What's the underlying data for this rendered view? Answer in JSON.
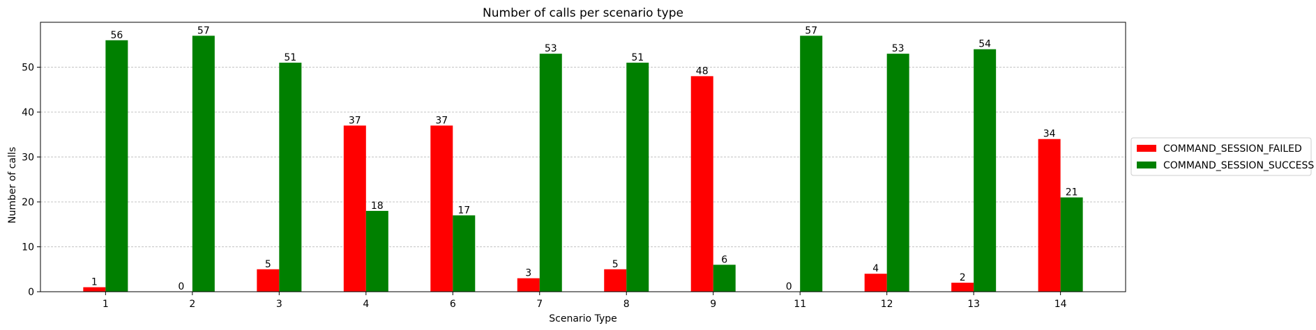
{
  "chart_data": {
    "type": "bar",
    "title": "Number of calls per scenario type",
    "xlabel": "Scenario Type",
    "ylabel": "Number of calls",
    "categories": [
      "1",
      "2",
      "3",
      "4",
      "6",
      "7",
      "8",
      "9",
      "11",
      "12",
      "13",
      "14"
    ],
    "series": [
      {
        "name": "COMMAND_SESSION_FAILED",
        "color": "#ff0000",
        "values": [
          1,
          0,
          5,
          37,
          37,
          3,
          5,
          48,
          0,
          4,
          2,
          34
        ]
      },
      {
        "name": "COMMAND_SESSION_SUCCESS",
        "color": "#008000",
        "values": [
          56,
          57,
          51,
          18,
          17,
          53,
          51,
          6,
          57,
          53,
          54,
          21
        ]
      }
    ],
    "ylim": [
      0,
      60
    ],
    "yticks": [
      0,
      10,
      20,
      30,
      40,
      50
    ],
    "grid": "horizontal dashed",
    "legend_position": "right"
  }
}
